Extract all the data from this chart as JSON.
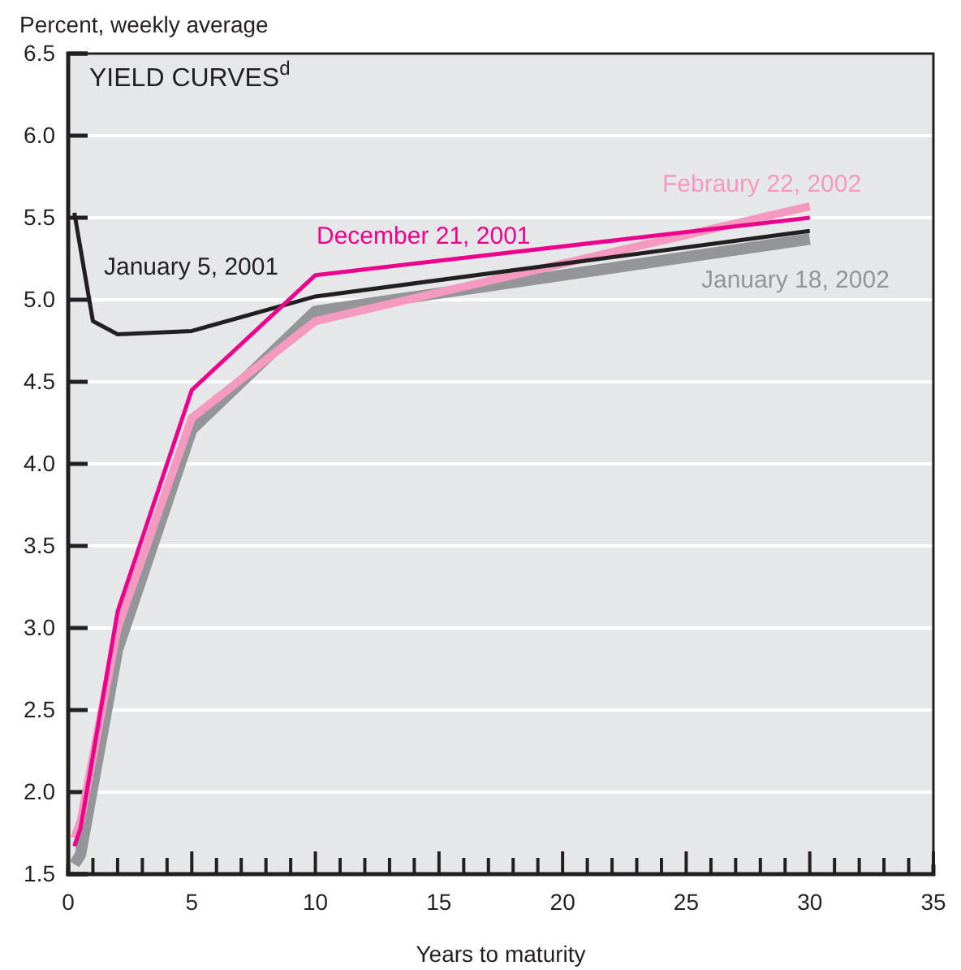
{
  "chart_data": {
    "type": "line",
    "title": "YIELD CURVES$^{d}$",
    "ylabel": "Percent, weekly average",
    "xlabel": "Years to maturity",
    "xlim": [
      0,
      35
    ],
    "ylim": [
      1.5,
      6.5
    ],
    "xticks": [
      0,
      {
        "value": 1,
        "label": null
      },
      {
        "value": 2,
        "label": null
      },
      {
        "value": 3,
        "label": null
      },
      {
        "value": 4,
        "label": null
      },
      5,
      {
        "value": 6,
        "label": null
      },
      {
        "value": 7,
        "label": null
      },
      {
        "value": 8,
        "label": null
      },
      {
        "value": 9,
        "label": null
      },
      10,
      {
        "value": 11,
        "label": null
      },
      {
        "value": 12,
        "label": null
      },
      {
        "value": 13,
        "label": null
      },
      {
        "value": 14,
        "label": null
      },
      15,
      {
        "value": 16,
        "label": null
      },
      {
        "value": 17,
        "label": null
      },
      {
        "value": 18,
        "label": null
      },
      {
        "value": 19,
        "label": null
      },
      20,
      {
        "value": 21,
        "label": null
      },
      {
        "value": 22,
        "label": null
      },
      {
        "value": 23,
        "label": null
      },
      {
        "value": 24,
        "label": null
      },
      25,
      {
        "value": 26,
        "label": null
      },
      {
        "value": 27,
        "label": null
      },
      {
        "value": 28,
        "label": null
      },
      {
        "value": 29,
        "label": null
      },
      30,
      {
        "value": 31,
        "label": null
      },
      {
        "value": 32,
        "label": null
      },
      {
        "value": 33,
        "label": null
      },
      {
        "value": 34,
        "label": null
      },
      35
    ],
    "yticks": [
      {
        "value": 1.5,
        "label": "1.5"
      },
      {
        "value": 2,
        "label": "2.0"
      },
      {
        "value": 2.5,
        "label": "2.5"
      },
      {
        "value": 3,
        "label": "3.0"
      },
      {
        "value": 3.5,
        "label": "3.5"
      },
      {
        "value": 4,
        "label": "4.0"
      },
      {
        "value": 4.5,
        "label": "4.5"
      },
      {
        "value": 5,
        "label": "5.0"
      },
      {
        "value": 5.5,
        "label": "5.5"
      },
      {
        "value": 6,
        "label": "6.0"
      },
      {
        "value": 6.5,
        "label": "6.5"
      }
    ],
    "grid": "y",
    "legend": false,
    "marker": "none",
    "line_style": "solid",
    "x": [
      0.25,
      0.5,
      2,
      5,
      10,
      30
    ],
    "series": [
      {
        "name": "January 18, 2002",
        "color": "#939598",
        "values": [
          1.56,
          1.62,
          2.87,
          4.21,
          4.93,
          5.37
        ]
      },
      {
        "name": "Febraury 22, 2002",
        "color": "#f49ac1",
        "values": [
          1.72,
          1.82,
          3.0,
          4.28,
          4.87,
          5.57
        ]
      },
      {
        "name": "January 5, 2001",
        "color": "#231f20",
        "x": [
          0.25,
          1,
          2,
          5,
          10,
          30
        ],
        "values": [
          5.53,
          4.87,
          4.79,
          4.81,
          5.02,
          5.42
        ]
      },
      {
        "name": "December 21, 2001",
        "color": "#ec008c",
        "values": [
          1.67,
          1.78,
          3.1,
          4.45,
          5.15,
          5.5
        ]
      }
    ]
  }
}
